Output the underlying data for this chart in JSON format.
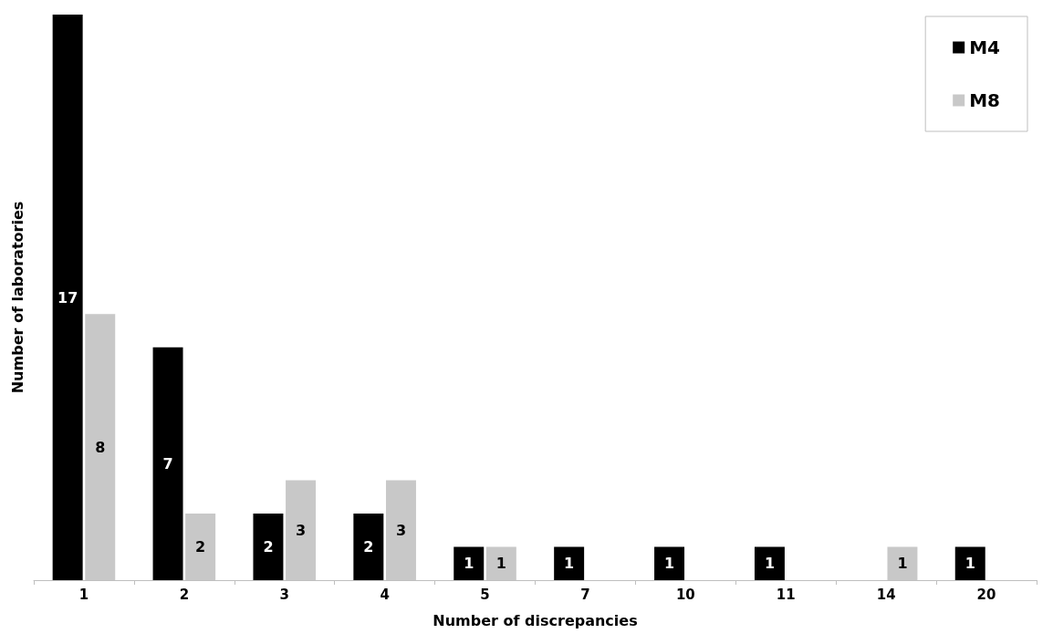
{
  "chart_data": {
    "type": "bar",
    "xlabel": "Number of discrepancies",
    "ylabel": "Number of laboratories",
    "categories": [
      "1",
      "2",
      "3",
      "4",
      "5",
      "7",
      "10",
      "11",
      "14",
      "20"
    ],
    "series": [
      {
        "name": "M4",
        "color": "#000000",
        "values": [
          17,
          7,
          2,
          2,
          1,
          1,
          1,
          1,
          null,
          1
        ]
      },
      {
        "name": "M8",
        "color": "#c8c8c8",
        "values": [
          8,
          2,
          3,
          3,
          1,
          null,
          null,
          null,
          1,
          null
        ]
      }
    ],
    "data_labels": true,
    "legend": "top right",
    "grid": false
  }
}
